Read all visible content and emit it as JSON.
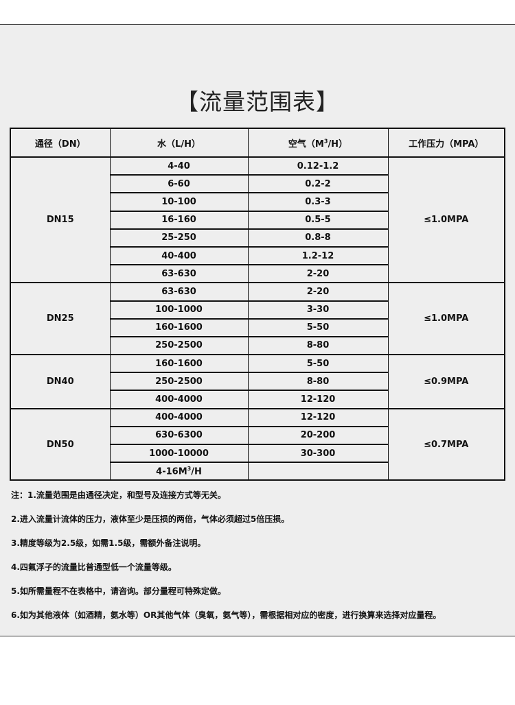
{
  "title": "【流量范围表】",
  "table": {
    "headers": [
      "通径（DN）",
      "水（L/H）",
      "空气（M³/H）",
      "工作压力（MPA）"
    ],
    "groups": [
      {
        "dn": "DN15",
        "pressure": "≤1.0MPA",
        "rows": [
          [
            "4-40",
            "0.12-1.2"
          ],
          [
            "6-60",
            "0.2-2"
          ],
          [
            "10-100",
            "0.3-3"
          ],
          [
            "16-160",
            "0.5-5"
          ],
          [
            "25-250",
            "0.8-8"
          ],
          [
            "40-400",
            "1.2-12"
          ],
          [
            "63-630",
            "2-20"
          ]
        ]
      },
      {
        "dn": "DN25",
        "pressure": "≤1.0MPA",
        "rows": [
          [
            "63-630",
            "2-20"
          ],
          [
            "100-1000",
            "3-30"
          ],
          [
            "160-1600",
            "5-50"
          ],
          [
            "250-2500",
            "8-80"
          ]
        ]
      },
      {
        "dn": "DN40",
        "pressure": "≤0.9MPA",
        "rows": [
          [
            "160-1600",
            "5-50"
          ],
          [
            "250-2500",
            "8-80"
          ],
          [
            "400-4000",
            "12-120"
          ]
        ]
      },
      {
        "dn": "DN50",
        "pressure": "≤0.7MPA",
        "rows": [
          [
            "400-4000",
            "12-120"
          ],
          [
            "630-6300",
            "20-200"
          ],
          [
            "1000-10000",
            "30-300"
          ],
          [
            "4-16M³/H",
            ""
          ]
        ]
      }
    ]
  },
  "notes": [
    "注：1.流量范围是由通径决定，和型号及连接方式等无关。",
    "2.进入流量计流体的压力，液体至少是压损的两倍，气体必须超过5倍压损。",
    "3.精度等级为2.5级，如需1.5级，需额外备注说明。",
    "4.四氟浮子的流量比普通型低一个流量等级。",
    "5.如所需量程不在表格中，请咨询。部分量程可特殊定做。",
    "6.如为其他液体（如酒精，氨水等）OR其他气体（臭氧，氨气等），需根据相对应的密度，进行换算来选择对应量程。"
  ]
}
